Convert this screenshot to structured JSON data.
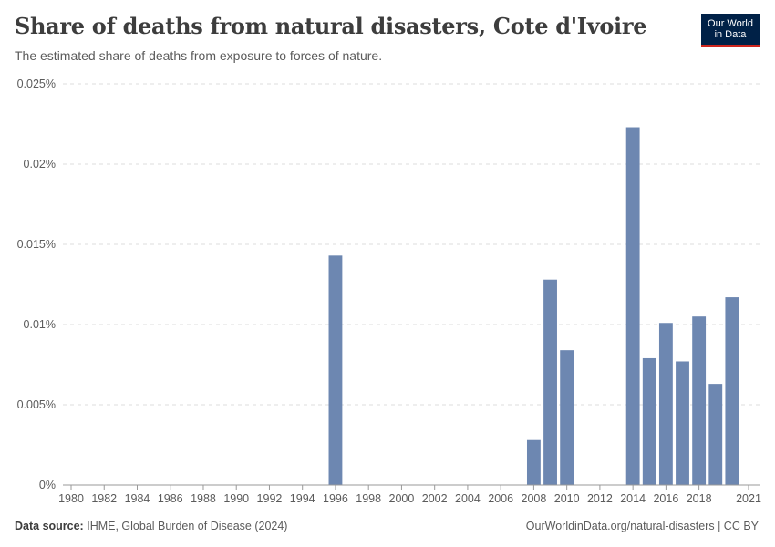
{
  "header": {
    "title": "Share of deaths from natural disasters, Cote d'Ivoire",
    "subtitle": "The estimated share of deaths from exposure to forces of nature.",
    "logo_line1": "Our World",
    "logo_line2": "in Data"
  },
  "footer": {
    "source_label": "Data source:",
    "source_text": "IHME, Global Burden of Disease (2024)",
    "link_text": "OurWorldinData.org/natural-disasters | CC BY"
  },
  "colors": {
    "bar": "#6d87b1",
    "grid": "#dddddd",
    "axis": "#999999"
  },
  "chart_data": {
    "type": "bar",
    "title": "Share of deaths from natural disasters, Cote d'Ivoire",
    "xlabel": "",
    "ylabel": "",
    "xlim": [
      1980,
      2021
    ],
    "ylim": [
      0,
      0.025
    ],
    "y_ticks": [
      0,
      0.005,
      0.01,
      0.015,
      0.02,
      0.025
    ],
    "y_tick_labels": [
      "0%",
      "0.005%",
      "0.01%",
      "0.015%",
      "0.02%",
      "0.025%"
    ],
    "x_ticks": [
      1980,
      1982,
      1984,
      1986,
      1988,
      1990,
      1992,
      1994,
      1996,
      1998,
      2000,
      2002,
      2004,
      2006,
      2008,
      2010,
      2012,
      2014,
      2016,
      2018,
      2021
    ],
    "grid": true,
    "units": "%",
    "categories": [
      1996,
      2008,
      2009,
      2010,
      2014,
      2015,
      2016,
      2017,
      2018,
      2019,
      2020
    ],
    "values": [
      0.0143,
      0.0028,
      0.0128,
      0.0084,
      0.0223,
      0.0079,
      0.0101,
      0.0077,
      0.0105,
      0.0063,
      0.0117
    ]
  }
}
